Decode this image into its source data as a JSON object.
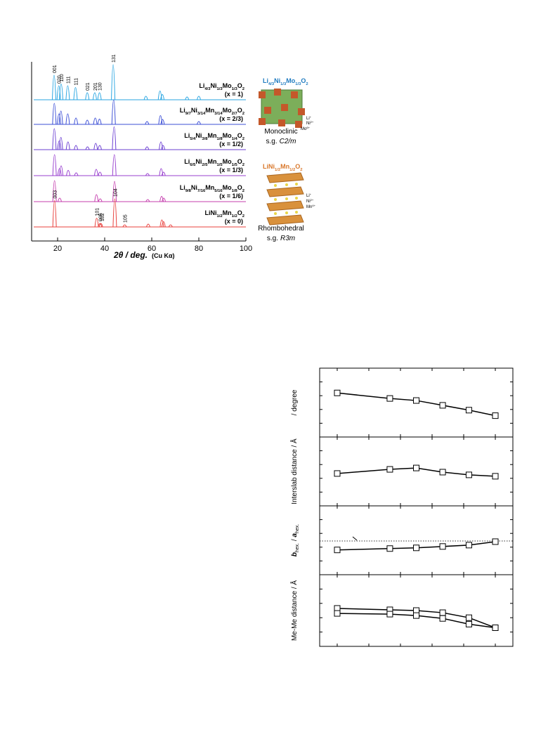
{
  "xrd": {
    "xlabel": {
      "main": "2θ / deg.",
      "source": "(Cu Kα)"
    },
    "xlim": [
      10,
      100
    ],
    "xticks": [
      20,
      40,
      60,
      80,
      100
    ],
    "patterns": [
      {
        "color": "#2aa6e2",
        "formula": [
          {
            "el": "Li",
            "sub": "4/3"
          },
          {
            "el": "Ni",
            "sub": "1/3"
          },
          {
            "el": "Mo",
            "sub": "1/3"
          },
          {
            "el": "O",
            "sub": "2"
          }
        ],
        "x_label": "(x = 1)",
        "positions": [
          18.5,
          20.5,
          21.5,
          24.3,
          27.6,
          32.6,
          35.8,
          37.8,
          43.6,
          57.5,
          63.5,
          64.5,
          75,
          80
        ],
        "intensities": [
          70,
          40,
          45,
          40,
          35,
          20,
          20,
          20,
          100,
          10,
          25,
          15,
          8,
          10
        ],
        "indices": [
          {
            "label": "001",
            "position": 18.5
          },
          {
            "label": "020",
            "position": 20.5
          },
          {
            "label": "110",
            "position": 21.5
          },
          {
            "label": "111",
            "position": 24.3
          },
          {
            "label": "111",
            "position": 27.6
          },
          {
            "label": "021",
            "position": 32.6
          },
          {
            "label": "201",
            "position": 35.8
          },
          {
            "label": "130",
            "position": 37.8
          },
          {
            "label": "131",
            "position": 43.6
          }
        ]
      },
      {
        "color": "#3c4fd6",
        "formula": [
          {
            "el": "Li",
            "sub": "9/7"
          },
          {
            "el": "Ni",
            "sub": "3/14"
          },
          {
            "el": "Mn",
            "sub": "3/14"
          },
          {
            "el": "Mo",
            "sub": "2/7"
          },
          {
            "el": "O",
            "sub": "2"
          }
        ],
        "x_label": "(x = 2/3)",
        "positions": [
          18.6,
          20.6,
          21.4,
          24.3,
          27.8,
          32.6,
          36,
          37.8,
          43.8,
          58,
          63.7,
          64.6,
          80
        ],
        "intensities": [
          60,
          30,
          38,
          30,
          18,
          12,
          18,
          15,
          70,
          8,
          25,
          14,
          8
        ]
      },
      {
        "color": "#6b3fd2",
        "formula": [
          {
            "el": "Li",
            "sub": "5/4"
          },
          {
            "el": "Ni",
            "sub": "3/8"
          },
          {
            "el": "Mn",
            "sub": "1/8"
          },
          {
            "el": "Mo",
            "sub": "1/4"
          },
          {
            "el": "O",
            "sub": "2"
          }
        ],
        "x_label": "(x = 1/2)",
        "positions": [
          18.6,
          20.7,
          21.4,
          24.4,
          27.8,
          32.7,
          36.2,
          37.9,
          44,
          58,
          63.9,
          64.8
        ],
        "intensities": [
          60,
          25,
          35,
          22,
          12,
          8,
          18,
          12,
          65,
          8,
          22,
          12
        ]
      },
      {
        "color": "#9840cf",
        "formula": [
          {
            "el": "Li",
            "sub": "6/5"
          },
          {
            "el": "Ni",
            "sub": "2/5"
          },
          {
            "el": "Mn",
            "sub": "1/5"
          },
          {
            "el": "Mo",
            "sub": "1/5"
          },
          {
            "el": "O",
            "sub": "2"
          }
        ],
        "x_label": "(x = 1/3)",
        "positions": [
          18.7,
          20.8,
          21.5,
          24.5,
          27.9,
          36.4,
          38,
          44.1,
          58.2,
          64,
          65
        ],
        "intensities": [
          60,
          20,
          28,
          15,
          8,
          18,
          10,
          60,
          6,
          20,
          10
        ]
      },
      {
        "color": "#c53fae",
        "formula": [
          {
            "el": "Li",
            "sub": "9/8"
          },
          {
            "el": "Ni",
            "sub": "7/16"
          },
          {
            "el": "Mn",
            "sub": "5/16"
          },
          {
            "el": "Mo",
            "sub": "1/8"
          },
          {
            "el": "O",
            "sub": "2"
          }
        ],
        "x_label": "(x = 1/6)",
        "positions": [
          18.7,
          20.9,
          36.5,
          38.1,
          44.2,
          58.3,
          64.2,
          65.1
        ],
        "intensities": [
          60,
          10,
          20,
          8,
          58,
          6,
          15,
          10
        ]
      },
      {
        "color": "#e8413d",
        "formula": [
          {
            "el": "Li"
          },
          {
            "el": "Ni",
            "sub": "1/2"
          },
          {
            "el": "Mn",
            "sub": "1/2"
          },
          {
            "el": "O",
            "sub": "2"
          }
        ],
        "x_label": "(x = 0)",
        "positions": [
          18.7,
          36.6,
          38,
          38.4,
          44.3,
          48.5,
          58.5,
          64.3,
          65,
          68
        ],
        "intensities": [
          75,
          25,
          10,
          10,
          80,
          6,
          8,
          20,
          15,
          6
        ],
        "indices": [
          {
            "label": "003",
            "position": 18.7
          },
          {
            "label": "101",
            "position": 36.6
          },
          {
            "label": "006",
            "position": 38
          },
          {
            "label": "102",
            "position": 38.8
          },
          {
            "label": "104",
            "position": 44.3
          },
          {
            "label": "105",
            "position": 48.5
          }
        ]
      }
    ]
  },
  "structures": [
    {
      "formula": [
        {
          "el": "Li",
          "sub": "4/3"
        },
        {
          "el": "Ni",
          "sub": "1/3"
        },
        {
          "el": "Mo",
          "sub": "1/3"
        },
        {
          "el": "O",
          "sub": "2"
        }
      ],
      "ions": [
        {
          "el": "Li",
          "sup": "+"
        },
        {
          "el": "Ni",
          "sup": "2+"
        },
        {
          "el": "Mo",
          "sup": "6+"
        }
      ],
      "system": "Monoclinic",
      "space_group": {
        "prefix": "s.g.",
        "symbol": "C2/m"
      }
    },
    {
      "formula": [
        {
          "el": "Li"
        },
        {
          "el": "Ni",
          "sub": "1/2"
        },
        {
          "el": "Mn",
          "sub": "1/2"
        },
        {
          "el": "O",
          "sub": "2"
        }
      ],
      "ions": [
        {
          "el": "Li",
          "sup": "+"
        },
        {
          "el": "Ni",
          "sup": "2+"
        },
        {
          "el": "Mn",
          "sup": "4+"
        }
      ],
      "system": "Rhombohedral",
      "space_group": {
        "prefix": "s.g.",
        "symbol": "R3m"
      }
    }
  ],
  "params": {
    "x": [
      0,
      0.333,
      0.5,
      0.667,
      0.833,
      1
    ],
    "xlim": [
      -0.111,
      1.111
    ],
    "xticks": [
      0,
      0.2,
      0.4,
      0.6,
      0.8,
      1
    ],
    "panels": [
      {
        "ylabel": "/ degree",
        "ylim": [
          0,
          100
        ],
        "yticks": [
          20,
          40,
          60,
          80
        ],
        "series": [
          {
            "values": [
              64,
              56,
              53,
              46,
              39,
              31
            ]
          }
        ]
      },
      {
        "ylabel": "Interslab distance / Å",
        "ylim": [
          0,
          100
        ],
        "yticks": [
          20,
          40,
          60,
          80
        ],
        "series": [
          {
            "values": [
              47,
              53,
              55,
              49,
              45,
              43
            ]
          }
        ]
      },
      {
        "ylabel": {
          "b": "b",
          "b_sub": "hex.",
          "sep": " / ",
          "a": "a",
          "a_sub": "hex."
        },
        "ylim": [
          0,
          100
        ],
        "yticks": [
          20,
          40,
          60,
          80
        ],
        "reference": 49,
        "series": [
          {
            "values": [
              36,
              38,
              39,
              41,
              43,
              48
            ]
          }
        ]
      },
      {
        "ylabel": "Me-Me distance / Å",
        "ylim": [
          0,
          100
        ],
        "yticks": [
          20,
          40,
          60,
          80
        ],
        "series": [
          {
            "values": [
              53,
              51,
              50,
              47,
              40,
              26
            ]
          },
          {
            "values": [
              46,
              45,
              43,
              39,
              31,
              26
            ]
          }
        ]
      }
    ]
  }
}
